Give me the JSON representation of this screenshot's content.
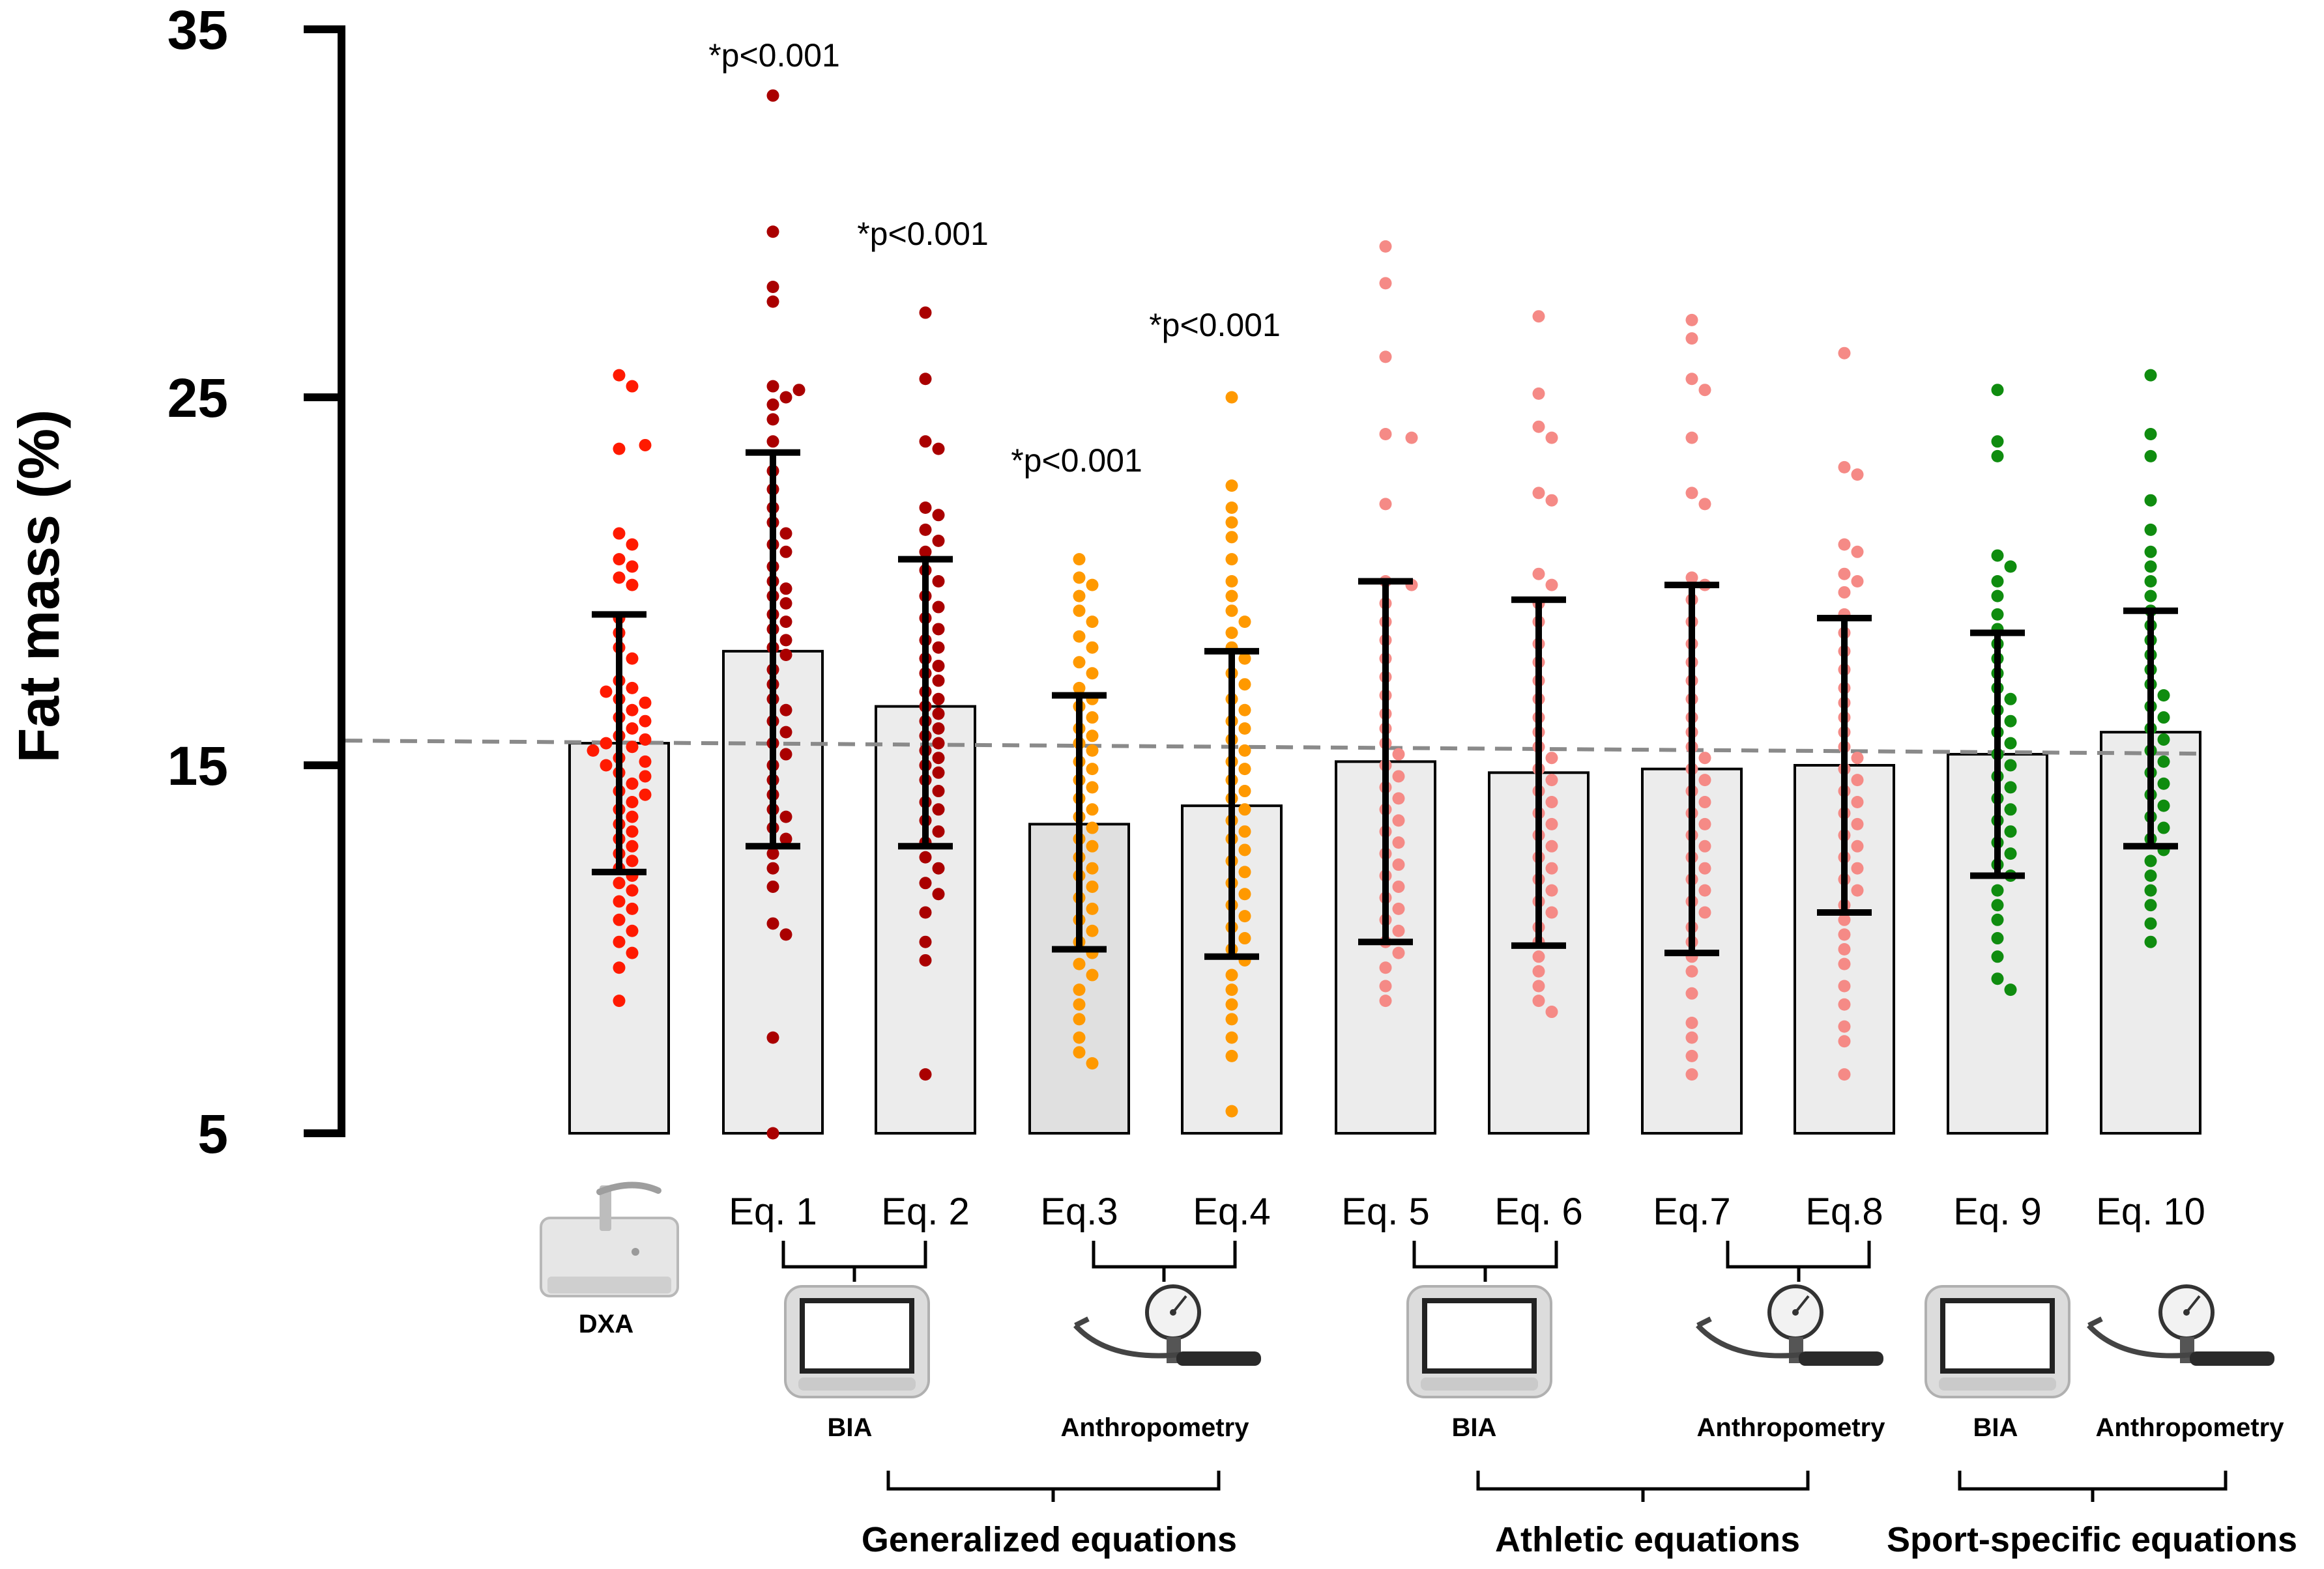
{
  "chart_data": {
    "type": "bar",
    "ylabel": "Fat mass (%)",
    "ylim": [
      5,
      35
    ],
    "yticks": [
      5,
      15,
      25,
      35
    ],
    "reference_line": 15.6,
    "colors": {
      "dxa": "#ff1a00",
      "generalized_bia": "#aa0000",
      "generalized_anthropometry": "#ff9900",
      "athletic": "#f58a86",
      "sport_specific": "#0f8c0f",
      "bar_fill": "#ececec",
      "bar_fill_dark": "#e0e0e0",
      "error_bar": "#000000",
      "reference_line": "#8a8a8a"
    },
    "series": [
      {
        "name": "DXA",
        "mean": 15.6,
        "sd_low": 12.1,
        "sd_high": 19.1,
        "color_key": "dxa",
        "significance": "",
        "points": [
          25.6,
          25.3,
          23.6,
          23.7,
          21.3,
          21.0,
          20.6,
          20.4,
          20.1,
          19.9,
          19.0,
          18.6,
          18.2,
          17.9,
          17.3,
          17.1,
          17.0,
          16.8,
          16.7,
          16.5,
          16.3,
          16.2,
          16.0,
          15.8,
          15.7,
          15.6,
          15.5,
          15.4,
          15.2,
          15.1,
          15.0,
          14.8,
          14.7,
          14.5,
          14.3,
          14.2,
          14.0,
          13.8,
          13.6,
          13.4,
          13.2,
          13.0,
          12.8,
          12.6,
          12.4,
          12.2,
          12.0,
          11.8,
          11.6,
          11.3,
          11.1,
          10.8,
          10.5,
          10.2,
          9.9,
          9.5,
          8.6
        ]
      },
      {
        "name": "Eq. 1",
        "mean": 18.1,
        "sd_low": 12.8,
        "sd_high": 23.5,
        "color_key": "generalized_bia",
        "significance": "p<0.001",
        "points": [
          33.2,
          29.5,
          28.0,
          27.6,
          25.3,
          25.2,
          25.0,
          24.8,
          24.4,
          23.8,
          23.0,
          22.5,
          22.0,
          21.6,
          21.3,
          21.0,
          20.8,
          20.4,
          20.0,
          19.8,
          19.6,
          19.4,
          19.1,
          18.9,
          18.7,
          18.4,
          18.2,
          18.0,
          17.6,
          17.2,
          16.8,
          16.5,
          16.2,
          15.9,
          15.6,
          15.3,
          15.0,
          14.6,
          14.2,
          13.8,
          13.6,
          13.3,
          13.0,
          12.6,
          12.2,
          11.7,
          10.7,
          10.4,
          7.6,
          5.0
        ]
      },
      {
        "name": "Eq. 2",
        "mean": 16.6,
        "sd_low": 12.8,
        "sd_high": 20.6,
        "color_key": "generalized_bia",
        "significance": "p<0.001",
        "points": [
          27.3,
          25.5,
          23.8,
          23.6,
          22.0,
          21.8,
          21.4,
          21.1,
          20.8,
          20.3,
          20.0,
          19.6,
          19.3,
          19.0,
          18.7,
          18.4,
          18.2,
          17.9,
          17.7,
          17.5,
          17.3,
          17.0,
          16.8,
          16.6,
          16.4,
          16.2,
          16.0,
          15.8,
          15.6,
          15.4,
          15.2,
          15.0,
          14.8,
          14.6,
          14.3,
          14.0,
          13.8,
          13.5,
          13.2,
          12.9,
          12.5,
          12.2,
          11.8,
          11.5,
          11.0,
          10.2,
          9.7,
          6.6
        ]
      },
      {
        "name": "Eq.3",
        "mean": 13.4,
        "sd_low": 10.0,
        "sd_high": 16.9,
        "color_key": "generalized_anthropometry",
        "significance": "p<0.001",
        "points": [
          20.6,
          20.1,
          19.9,
          19.6,
          19.2,
          18.9,
          18.5,
          18.2,
          17.8,
          17.5,
          17.1,
          16.8,
          16.6,
          16.3,
          16.0,
          15.8,
          15.6,
          15.4,
          15.1,
          14.9,
          14.6,
          14.4,
          14.1,
          13.8,
          13.6,
          13.3,
          13.0,
          12.8,
          12.5,
          12.2,
          12.0,
          11.7,
          11.4,
          11.1,
          10.8,
          10.5,
          10.2,
          9.9,
          9.6,
          9.3,
          8.9,
          8.5,
          8.1,
          7.6,
          7.2,
          6.9
        ]
      },
      {
        "name": "Eq.4",
        "mean": 13.9,
        "sd_low": 9.8,
        "sd_high": 18.1,
        "color_key": "generalized_anthropometry",
        "significance": "p<0.001",
        "points": [
          25.0,
          22.6,
          22.0,
          21.6,
          21.2,
          20.6,
          20.0,
          19.6,
          19.2,
          18.9,
          18.6,
          18.2,
          17.9,
          17.5,
          17.2,
          16.8,
          16.5,
          16.2,
          16.0,
          15.7,
          15.4,
          15.1,
          14.9,
          14.6,
          14.3,
          14.1,
          13.8,
          13.5,
          13.2,
          13.0,
          12.7,
          12.4,
          12.1,
          11.8,
          11.5,
          11.2,
          10.9,
          10.6,
          10.3,
          10.0,
          9.7,
          9.3,
          8.9,
          8.5,
          8.1,
          7.6,
          7.1,
          5.6
        ]
      },
      {
        "name": "Eq. 5",
        "mean": 15.1,
        "sd_low": 10.2,
        "sd_high": 20.0,
        "color_key": "athletic",
        "significance": "",
        "points": [
          29.1,
          28.1,
          26.1,
          24.0,
          23.9,
          22.1,
          20.0,
          19.9,
          19.4,
          18.9,
          18.4,
          17.9,
          17.4,
          16.9,
          16.4,
          16.0,
          15.6,
          15.3,
          15.0,
          14.7,
          14.4,
          14.1,
          13.8,
          13.5,
          13.2,
          12.9,
          12.6,
          12.3,
          12.0,
          11.7,
          11.4,
          11.1,
          10.8,
          10.5,
          10.2,
          9.9,
          9.5,
          9.0,
          8.6
        ]
      },
      {
        "name": "Eq. 6",
        "mean": 14.8,
        "sd_low": 10.1,
        "sd_high": 19.5,
        "color_key": "athletic",
        "significance": "",
        "points": [
          27.2,
          25.1,
          24.2,
          23.9,
          22.4,
          22.2,
          20.2,
          19.9,
          19.4,
          18.9,
          18.3,
          17.8,
          17.3,
          16.8,
          16.3,
          15.9,
          15.5,
          15.2,
          14.9,
          14.6,
          14.3,
          14.0,
          13.7,
          13.4,
          13.1,
          12.8,
          12.5,
          12.2,
          11.9,
          11.6,
          11.3,
          11.0,
          10.6,
          10.2,
          9.8,
          9.4,
          9.0,
          8.6,
          8.3
        ]
      },
      {
        "name": "Eq.7",
        "mean": 14.9,
        "sd_low": 9.9,
        "sd_high": 19.9,
        "color_key": "athletic",
        "significance": "",
        "points": [
          27.1,
          26.6,
          25.5,
          25.2,
          23.9,
          22.4,
          22.1,
          20.1,
          19.9,
          19.5,
          18.9,
          18.3,
          17.8,
          17.3,
          16.8,
          16.3,
          15.9,
          15.5,
          15.2,
          14.9,
          14.6,
          14.3,
          14.0,
          13.7,
          13.4,
          13.1,
          12.8,
          12.5,
          12.2,
          11.9,
          11.6,
          11.3,
          11.0,
          10.6,
          10.2,
          9.8,
          9.4,
          8.8,
          8.0,
          7.6,
          7.1,
          6.6
        ]
      },
      {
        "name": "Eq.8",
        "mean": 15.0,
        "sd_low": 11.0,
        "sd_high": 19.0,
        "color_key": "athletic",
        "significance": "",
        "points": [
          26.2,
          23.1,
          22.9,
          21.0,
          20.8,
          20.2,
          20.0,
          19.7,
          19.1,
          18.6,
          18.1,
          17.6,
          17.1,
          16.7,
          16.3,
          15.9,
          15.5,
          15.2,
          14.9,
          14.6,
          14.3,
          14.0,
          13.7,
          13.4,
          13.1,
          12.8,
          12.5,
          12.2,
          11.9,
          11.6,
          11.2,
          10.8,
          10.4,
          10.0,
          9.6,
          9.0,
          8.5,
          7.9,
          7.5,
          6.6
        ]
      },
      {
        "name": "Eq. 9",
        "mean": 15.3,
        "sd_low": 12.0,
        "sd_high": 18.6,
        "color_key": "sport_specific",
        "significance": "",
        "points": [
          25.2,
          23.8,
          23.4,
          20.7,
          20.4,
          20.0,
          19.6,
          19.1,
          18.7,
          18.3,
          17.9,
          17.5,
          17.1,
          16.8,
          16.5,
          16.2,
          15.9,
          15.6,
          15.3,
          15.0,
          14.7,
          14.4,
          14.1,
          13.8,
          13.5,
          13.2,
          12.9,
          12.6,
          12.3,
          12.0,
          11.6,
          11.2,
          10.8,
          10.3,
          9.8,
          9.2,
          8.9
        ]
      },
      {
        "name": "Eq. 10",
        "mean": 15.9,
        "sd_low": 12.8,
        "sd_high": 19.2,
        "color_key": "sport_specific",
        "significance": "",
        "points": [
          25.6,
          24.0,
          23.4,
          22.2,
          21.4,
          20.8,
          20.4,
          20.0,
          19.6,
          19.2,
          18.8,
          18.4,
          18.0,
          17.6,
          17.2,
          16.9,
          16.6,
          16.3,
          16.0,
          15.7,
          15.4,
          15.1,
          14.8,
          14.5,
          14.2,
          13.9,
          13.6,
          13.3,
          13.0,
          12.7,
          12.4,
          12.0,
          11.6,
          11.2,
          10.7,
          10.2
        ]
      }
    ]
  },
  "labels": {
    "dxa": "DXA",
    "bia_1": "BIA",
    "anthropometry_1": "Anthropometry",
    "bia_2": "BIA",
    "anthropometry_2": "Anthropometry",
    "bia_3": "BIA",
    "anthropometry_3": "Anthropometry",
    "group_generalized": "Generalized equations",
    "group_athletic": "Athletic equations",
    "group_sport_specific": "Sport-specific equations",
    "sig_star": "*"
  },
  "icons": [
    "dxa-scanner-icon",
    "bia-monitor-icon",
    "skinfold-caliper-icon"
  ]
}
